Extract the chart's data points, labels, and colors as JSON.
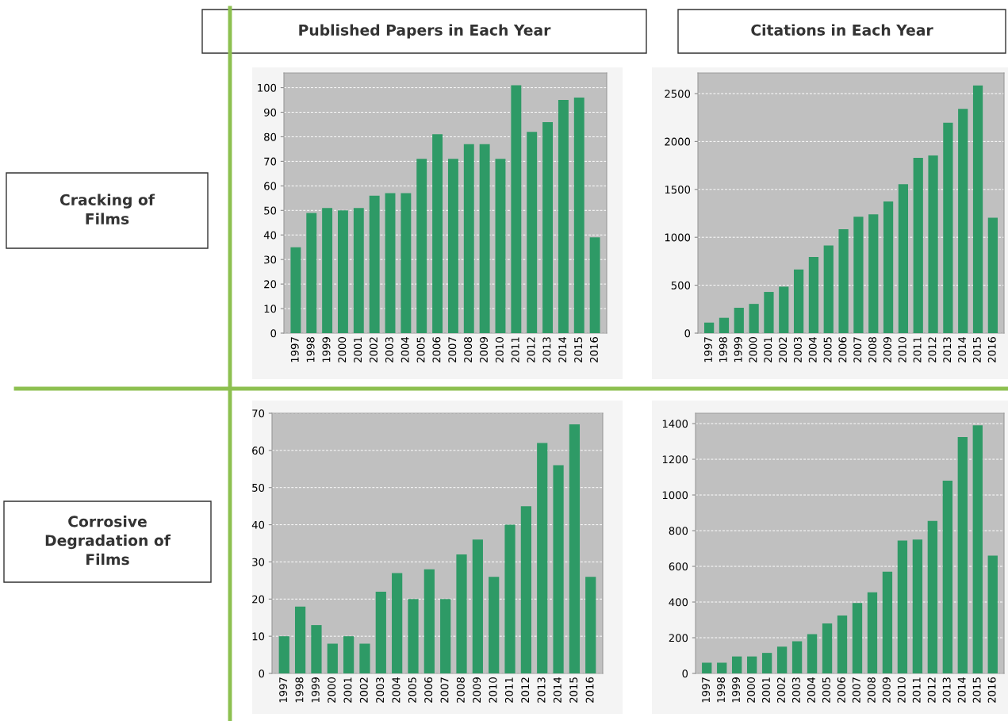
{
  "chart_data": [
    {
      "type": "bar",
      "title": "Published Papers in Each Year",
      "annotations": [
        "Cracking of\nFilms"
      ],
      "categories": [
        "1997",
        "1998",
        "1999",
        "2000",
        "2001",
        "2002",
        "2003",
        "2004",
        "2005",
        "2006",
        "2007",
        "2008",
        "2009",
        "2010",
        "2011",
        "2012",
        "2013",
        "2014",
        "2015",
        "2016"
      ],
      "values": [
        35,
        49,
        51,
        50,
        51,
        56,
        57,
        57,
        71,
        81,
        71,
        77,
        77,
        71,
        101,
        82,
        86,
        95,
        96,
        39
      ],
      "color": "#2e9a66",
      "ylim": [
        0,
        106
      ],
      "yticks": [
        0,
        10,
        20,
        30,
        40,
        50,
        60,
        70,
        80,
        90,
        100
      ],
      "grid": "y"
    },
    {
      "type": "bar",
      "title": "Citations in Each Year",
      "categories": [
        "1997",
        "1998",
        "1999",
        "2000",
        "2001",
        "2002",
        "2003",
        "2004",
        "2005",
        "2006",
        "2007",
        "2008",
        "2009",
        "2010",
        "2011",
        "2012",
        "2013",
        "2014",
        "2015",
        "2016"
      ],
      "values": [
        110,
        160,
        265,
        305,
        430,
        485,
        665,
        795,
        915,
        1085,
        1215,
        1240,
        1375,
        1555,
        1830,
        1855,
        2195,
        2340,
        2585,
        1205
      ],
      "color": "#2e9a66",
      "ylim": [
        0,
        2715
      ],
      "yticks": [
        0,
        500,
        1000,
        1500,
        2000,
        2500
      ],
      "grid": "y"
    },
    {
      "type": "bar",
      "annotations": [
        "Corrosive\nDegradation of\nFilms"
      ],
      "categories": [
        "1997",
        "1998",
        "1999",
        "2000",
        "2001",
        "2002",
        "2003",
        "2004",
        "2005",
        "2006",
        "2007",
        "2008",
        "2009",
        "2010",
        "2011",
        "2012",
        "2013",
        "2014",
        "2015",
        "2016"
      ],
      "values": [
        10,
        18,
        13,
        8,
        10,
        8,
        22,
        27,
        20,
        28,
        20,
        32,
        36,
        26,
        40,
        45,
        62,
        56,
        67,
        26
      ],
      "color": "#2e9a66",
      "ylim": [
        0,
        70
      ],
      "yticks": [
        0,
        10,
        20,
        30,
        40,
        50,
        60,
        70
      ],
      "grid": "y"
    },
    {
      "type": "bar",
      "categories": [
        "1997",
        "1998",
        "1999",
        "2000",
        "2001",
        "2002",
        "2003",
        "2004",
        "2005",
        "2006",
        "2007",
        "2008",
        "2009",
        "2010",
        "2011",
        "2012",
        "2013",
        "2014",
        "2015",
        "2016"
      ],
      "values": [
        60,
        60,
        95,
        95,
        115,
        150,
        180,
        220,
        280,
        325,
        395,
        455,
        570,
        745,
        750,
        855,
        1080,
        1325,
        1390,
        660
      ],
      "color": "#2e9a66",
      "ylim": [
        0,
        1458
      ],
      "yticks": [
        0,
        200,
        400,
        600,
        800,
        1000,
        1200,
        1400
      ],
      "grid": "y"
    }
  ]
}
